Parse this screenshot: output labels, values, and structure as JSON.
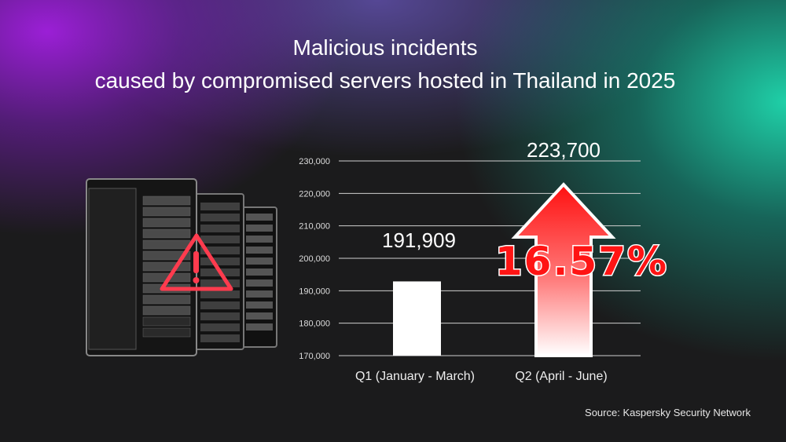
{
  "title": {
    "line1": "Malicious incidents",
    "line2": "caused by compromised servers hosted in Thailand in 2025"
  },
  "chart_data": {
    "type": "bar",
    "categories": [
      "Q1 (January - March)",
      "Q2 (April - June)"
    ],
    "values": [
      191909,
      223700
    ],
    "value_labels": [
      "191,909",
      "223,700"
    ],
    "ylim": [
      170000,
      230000
    ],
    "yticks": [
      170000,
      180000,
      190000,
      200000,
      210000,
      220000,
      230000
    ],
    "ytick_labels": [
      "170,000",
      "180,000",
      "190,000",
      "200,000",
      "210,000",
      "220,000",
      "230,000"
    ],
    "grid": true,
    "annotation": "16.57%",
    "q2_mark": "red-up-arrow"
  },
  "source": "Source: Kaspersky Security Network",
  "illustration": {
    "icon": "server-racks-with-warning-icon"
  },
  "colors": {
    "accent_red": "#ff1a1a",
    "bar": "#ffffff",
    "grid": "#cfcfcf"
  }
}
